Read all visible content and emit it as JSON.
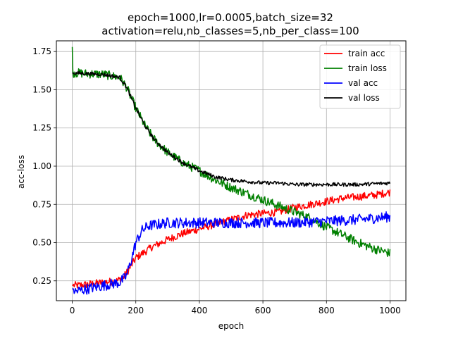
{
  "chart_data": {
    "type": "line",
    "title": [
      "epoch=1000,lr=0.0005,batch_size=32",
      "activation=relu,nb_classes=5,nb_per_class=100"
    ],
    "xlabel": "epoch",
    "ylabel": "acc-loss",
    "xlim": [
      -50,
      1050
    ],
    "ylim": [
      0.12,
      1.82
    ],
    "xticks": [
      0,
      200,
      400,
      600,
      800,
      1000
    ],
    "yticks": [
      0.25,
      0.5,
      0.75,
      1.0,
      1.25,
      1.5,
      1.75
    ],
    "xtick_labels": [
      "0",
      "200",
      "400",
      "600",
      "800",
      "1000"
    ],
    "ytick_labels": [
      "0.25",
      "0.50",
      "0.75",
      "1.00",
      "1.25",
      "1.50",
      "1.75"
    ],
    "grid": true,
    "legend_position": "top-right",
    "series": [
      {
        "name": "train acc",
        "color": "#ff0000",
        "noise": 0.025,
        "x": [
          0,
          20,
          60,
          100,
          140,
          160,
          180,
          200,
          250,
          300,
          350,
          400,
          450,
          500,
          550,
          600,
          650,
          700,
          750,
          800,
          850,
          900,
          950,
          1000
        ],
        "y": [
          0.22,
          0.22,
          0.23,
          0.24,
          0.25,
          0.27,
          0.33,
          0.4,
          0.47,
          0.52,
          0.56,
          0.59,
          0.62,
          0.65,
          0.68,
          0.69,
          0.7,
          0.73,
          0.75,
          0.77,
          0.79,
          0.8,
          0.81,
          0.83
        ]
      },
      {
        "name": "train loss",
        "color": "#008000",
        "noise": 0.03,
        "x": [
          0,
          2,
          10,
          50,
          100,
          150,
          170,
          200,
          230,
          260,
          300,
          350,
          400,
          450,
          500,
          550,
          600,
          650,
          700,
          750,
          800,
          850,
          900,
          950,
          1000
        ],
        "y": [
          1.78,
          1.61,
          1.61,
          1.605,
          1.6,
          1.58,
          1.52,
          1.38,
          1.26,
          1.17,
          1.09,
          1.02,
          0.97,
          0.91,
          0.86,
          0.82,
          0.78,
          0.74,
          0.7,
          0.66,
          0.6,
          0.55,
          0.5,
          0.46,
          0.43
        ]
      },
      {
        "name": "val acc",
        "color": "#0000ff",
        "noise": 0.035,
        "x": [
          0,
          10,
          30,
          100,
          150,
          170,
          185,
          200,
          220,
          240,
          300,
          400,
          500,
          600,
          700,
          800,
          900,
          1000
        ],
        "y": [
          0.2,
          0.18,
          0.19,
          0.22,
          0.24,
          0.28,
          0.38,
          0.5,
          0.58,
          0.61,
          0.63,
          0.63,
          0.63,
          0.63,
          0.63,
          0.64,
          0.65,
          0.67
        ]
      },
      {
        "name": "val loss",
        "color": "#000000",
        "noise": 0.012,
        "x": [
          0,
          50,
          100,
          150,
          170,
          200,
          230,
          260,
          300,
          350,
          400,
          450,
          500,
          550,
          600,
          650,
          700,
          800,
          900,
          1000
        ],
        "y": [
          1.61,
          1.605,
          1.6,
          1.58,
          1.52,
          1.38,
          1.26,
          1.17,
          1.09,
          1.02,
          0.97,
          0.93,
          0.91,
          0.9,
          0.89,
          0.89,
          0.88,
          0.88,
          0.88,
          0.89
        ]
      }
    ]
  }
}
